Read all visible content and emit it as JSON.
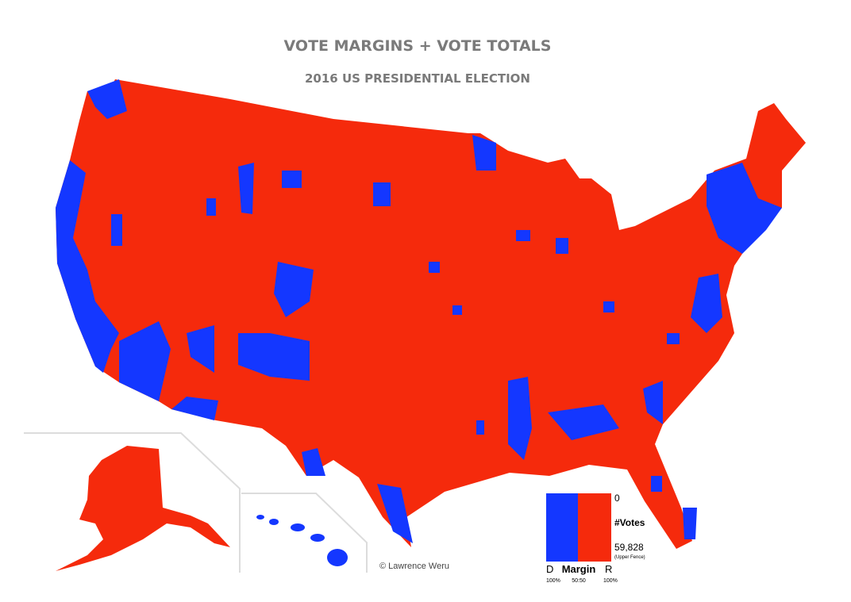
{
  "header": {
    "title": "VOTE MARGINS + VOTE TOTALS",
    "subtitle": "2016 US PRESIDENTIAL ELECTION"
  },
  "legend": {
    "votes_min": "0",
    "votes_label": "#Votes",
    "votes_max": "59,828",
    "votes_max_note": "(Upper Fence)",
    "margin_left": "D",
    "margin_label": "Margin",
    "margin_right": "R",
    "left_pct": "100%",
    "center": "50:50",
    "right_pct": "100%"
  },
  "credit": "© Lawrence Weru"
}
